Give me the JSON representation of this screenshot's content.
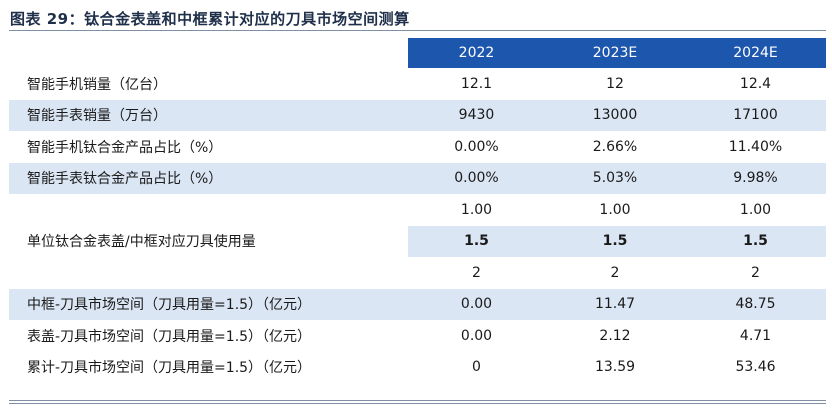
{
  "title": "图表 29：钛合金表盖和中框累计对应的刀具市场空间测算",
  "table": {
    "header": [
      "",
      "2022",
      "2023E",
      "2024E"
    ],
    "rows": [
      {
        "label": "智能手机销量（亿台）",
        "values": [
          "12.1",
          "12",
          "12.4"
        ]
      },
      {
        "label": "智能手表销量（万台）",
        "values": [
          "9430",
          "13000",
          "17100"
        ]
      },
      {
        "label": "智能手机钛合金产品占比（%）",
        "values": [
          "0.00%",
          "2.66%",
          "11.40%"
        ]
      },
      {
        "label": "智能手表钛合金产品占比（%）",
        "values": [
          "0.00%",
          "5.03%",
          "9.98%"
        ]
      }
    ],
    "usage_label": "单位钛合金表盖/中框对应刀具使用量",
    "usage_rows": [
      [
        "1.00",
        "1.00",
        "1.00"
      ],
      [
        "1.5",
        "1.5",
        "1.5"
      ],
      [
        "2",
        "2",
        "2"
      ]
    ],
    "market_rows": [
      {
        "label": "中框-刀具市场空间（刀具用量=1.5）（亿元）",
        "values": [
          "0.00",
          "11.47",
          "48.75"
        ]
      },
      {
        "label": "表盖-刀具市场空间（刀具用量=1.5）（亿元）",
        "values": [
          "0.00",
          "2.12",
          "4.71"
        ]
      },
      {
        "label": "累计-刀具市场空间（刀具用量=1.5）（亿元）",
        "values": [
          "0",
          "13.59",
          "53.46"
        ]
      }
    ]
  },
  "colors": {
    "header_bg": "#1d56ad",
    "row_shade": "#dbe6f4",
    "title_text": "#1f2f4a"
  }
}
